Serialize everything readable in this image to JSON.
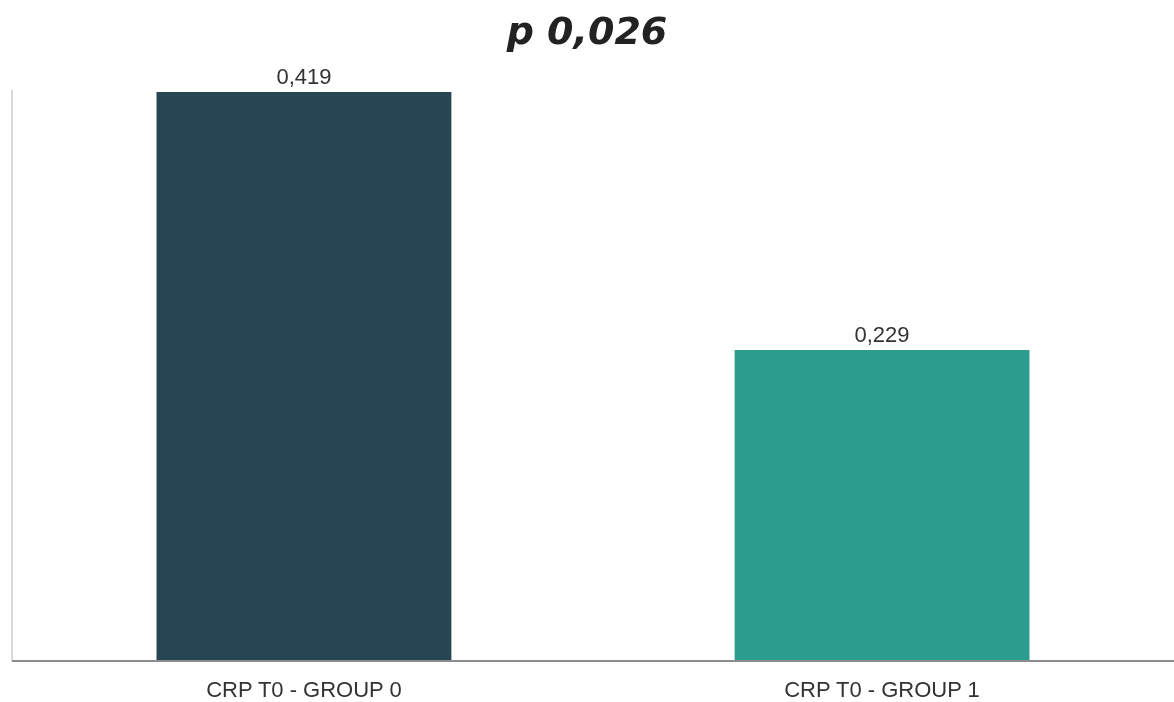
{
  "chart_data": {
    "type": "bar",
    "title": "p 0,026",
    "categories": [
      "CRP T0 - GROUP 0",
      "CRP T0 - GROUP 1"
    ],
    "values": [
      0.419,
      0.229
    ],
    "colors": [
      "#264653",
      "#2a9d8f"
    ],
    "value_labels": [
      "0,419",
      "0,229"
    ],
    "ylim": [
      0,
      0.419
    ],
    "tick_labels": "x"
  }
}
